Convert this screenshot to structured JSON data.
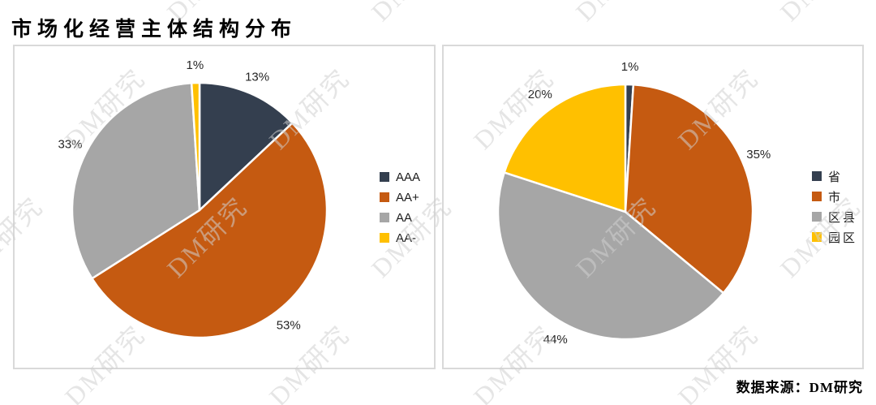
{
  "page": {
    "title": "市场化经营主体结构分布",
    "source": "数据来源：DM研究",
    "watermark": "DM研究"
  },
  "chart_data": [
    {
      "type": "pie",
      "name": "credit-rating-structure",
      "categories": [
        "AAA",
        "AA+",
        "AA",
        "AA-"
      ],
      "values": [
        13,
        53,
        33,
        1
      ],
      "labels": [
        "13%",
        "53%",
        "33%",
        "1%"
      ],
      "colors": [
        "#343F4F",
        "#C55A11",
        "#A6A6A6",
        "#FFC000"
      ],
      "legend_position": "right",
      "start_angle_deg": 0,
      "direction": "clockwise"
    },
    {
      "type": "pie",
      "name": "administrative-level-structure",
      "categories": [
        "省",
        "市",
        "区县",
        "园区"
      ],
      "values": [
        1,
        35,
        44,
        20
      ],
      "labels": [
        "1%",
        "35%",
        "44%",
        "20%"
      ],
      "colors": [
        "#343F4F",
        "#C55A11",
        "#A6A6A6",
        "#FFC000"
      ],
      "legend_position": "right",
      "start_angle_deg": 0,
      "direction": "clockwise"
    }
  ]
}
